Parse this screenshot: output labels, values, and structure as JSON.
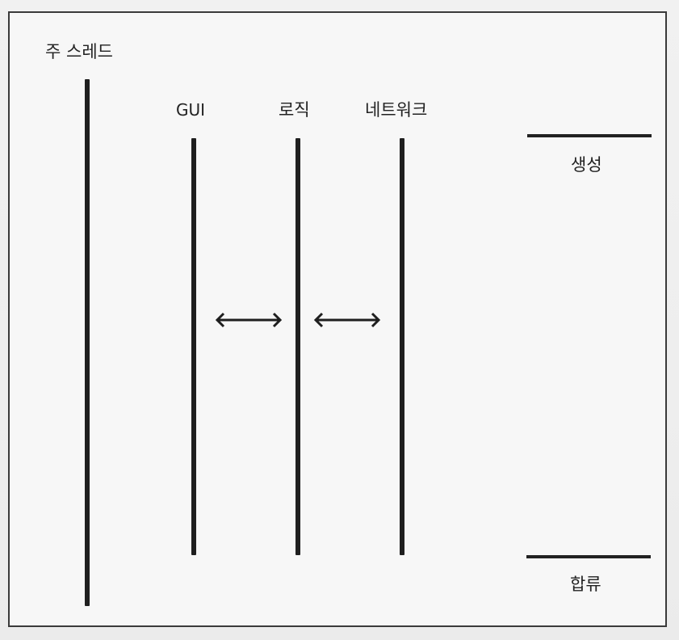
{
  "diagram": {
    "main_thread_label": "주 스레드",
    "threads": [
      {
        "label": "GUI"
      },
      {
        "label": "로직"
      },
      {
        "label": "네트워크"
      }
    ],
    "legend": {
      "create_label": "생성",
      "join_label": "합류"
    },
    "colors": {
      "line": "#1f1f1f",
      "frame": "#3a3a3a",
      "background": "#f7f7f7"
    }
  }
}
